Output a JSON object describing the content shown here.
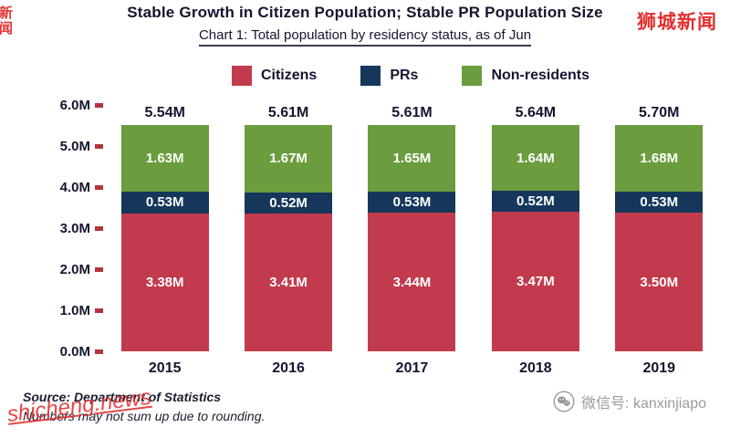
{
  "header": {
    "title": "Stable Growth in Citizen Population; Stable PR Population Size",
    "subtitle": "Chart 1: Total population by residency status, as of Jun"
  },
  "chart_data": {
    "type": "bar",
    "stacked": true,
    "categories": [
      "2015",
      "2016",
      "2017",
      "2018",
      "2019"
    ],
    "series": [
      {
        "name": "Citizens",
        "color": "#c23a4d",
        "values": [
          3.38,
          3.41,
          3.44,
          3.47,
          3.5
        ]
      },
      {
        "name": "PRs",
        "color": "#16365c",
        "values": [
          0.53,
          0.52,
          0.53,
          0.52,
          0.53
        ]
      },
      {
        "name": "Non-residents",
        "color": "#6b9c3e",
        "values": [
          1.63,
          1.67,
          1.65,
          1.64,
          1.68
        ]
      }
    ],
    "totals": [
      5.54,
      5.61,
      5.61,
      5.64,
      5.7
    ],
    "unit": "M",
    "ylim": [
      0,
      6.0
    ],
    "yticks": [
      "6.0M",
      "5.0M",
      "4.0M",
      "3.0M",
      "2.0M",
      "1.0M",
      "0.0M"
    ],
    "tick_color": "#b5323f",
    "grid": false,
    "legend_position": "top"
  },
  "footer": {
    "source": "Source: Department of Statistics",
    "note": "Numbers may not sum up due to rounding."
  },
  "watermarks": {
    "top_left": "新闻",
    "top_right": "狮城新闻",
    "bottom_left": "shicheng.news",
    "bottom_right": "微信号: kanxinjiapo"
  }
}
